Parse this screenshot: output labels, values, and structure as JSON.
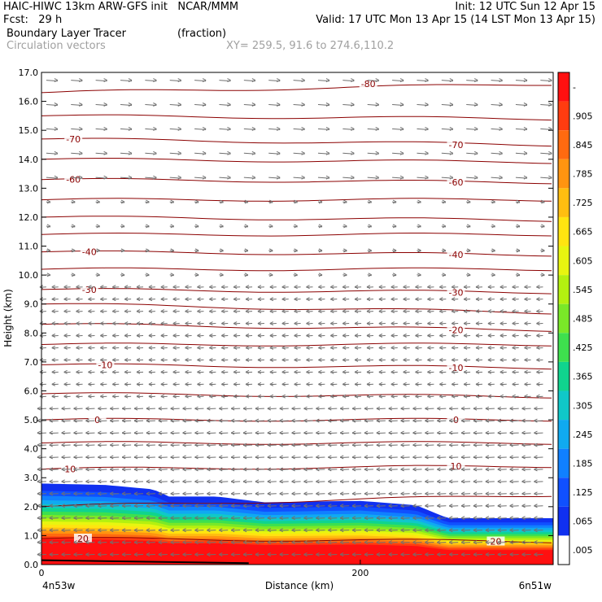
{
  "header": {
    "line1_left": "HAIC-HIWC 13km ARW-GFS init   NCAR/MMM",
    "line1_right": "Init: 12 UTC Sun 12 Apr 15",
    "line2_left": "Fcst:   29 h",
    "line2_right": "Valid: 17 UTC Mon 13 Apr 15 (14 LST Mon 13 Apr 15)",
    "line3_left": "Boundary Layer Tracer",
    "line3_mid": "(fraction)",
    "line4_left": "Circulation vectors",
    "line4_mid": "XY= 259.5, 91.6 to 274.6,110.2"
  },
  "chart_data": {
    "type": "heatmap",
    "ylabel": "Height (km)",
    "xlabel": "Distance (km)",
    "x_left_label": "4n53w",
    "x_right_label": "6n51w",
    "x_ticks": [
      {
        "value": 0,
        "label": "0"
      },
      {
        "value": 200,
        "label": "200"
      }
    ],
    "xlim": [
      0,
      321
    ],
    "ylim": [
      0,
      17
    ],
    "y_ticks": [
      "0.0",
      "1.0",
      "2.0",
      "3.0",
      "4.0",
      "5.0",
      "6.0",
      "7.0",
      "8.0",
      "9.0",
      "10.0",
      "11.0",
      "12.0",
      "13.0",
      "14.0",
      "15.0",
      "16.0",
      "17.0"
    ],
    "colorbar": {
      "labels": [
        "-",
        ".905",
        ".845",
        ".785",
        ".725",
        ".665",
        ".605",
        ".545",
        ".485",
        ".425",
        ".365",
        ".305",
        ".245",
        ".185",
        ".125",
        ".065",
        ".005"
      ],
      "colors": [
        "#ff1010",
        "#ff3c10",
        "#ff6a10",
        "#ff9410",
        "#ffbe10",
        "#ffe410",
        "#e8f510",
        "#b4f010",
        "#7ae828",
        "#3ee04e",
        "#10d48e",
        "#10c8c8",
        "#10aaf0",
        "#1080ff",
        "#1050ff",
        "#1030f0",
        "#ffffff"
      ]
    },
    "tracer_top_km": [
      {
        "x": 0,
        "y": 2.8
      },
      {
        "x": 40,
        "y": 2.75
      },
      {
        "x": 70,
        "y": 2.6
      },
      {
        "x": 80,
        "y": 2.35
      },
      {
        "x": 110,
        "y": 2.35
      },
      {
        "x": 140,
        "y": 2.15
      },
      {
        "x": 200,
        "y": 2.2
      },
      {
        "x": 235,
        "y": 2.05
      },
      {
        "x": 255,
        "y": 1.6
      },
      {
        "x": 321,
        "y": 1.6
      }
    ],
    "temperature_contours": [
      {
        "label": "-80",
        "y_left": 16.3,
        "y_right": 16.6
      },
      {
        "label": "",
        "y_left": 15.5,
        "y_right": 15.4
      },
      {
        "label": "-70",
        "y_left": 14.7,
        "y_right": 14.5
      },
      {
        "label": "",
        "y_left": 14.0,
        "y_right": 13.9
      },
      {
        "label": "-60",
        "y_left": 13.3,
        "y_right": 13.2
      },
      {
        "label": "",
        "y_left": 12.6,
        "y_right": 12.6
      },
      {
        "label": "",
        "y_left": 12.0,
        "y_right": 11.9
      },
      {
        "label": "",
        "y_left": 11.4,
        "y_right": 11.4
      },
      {
        "label": "-40",
        "y_left": 10.8,
        "y_right": 10.7
      },
      {
        "label": "",
        "y_left": 10.2,
        "y_right": 10.2
      },
      {
        "label": "-30",
        "y_left": 9.5,
        "y_right": 9.4
      },
      {
        "label": "",
        "y_left": 9.0,
        "y_right": 8.7
      },
      {
        "label": "-20",
        "y_left": 8.3,
        "y_right": 8.1
      },
      {
        "label": "",
        "y_left": 7.6,
        "y_right": 7.6
      },
      {
        "label": "-10",
        "y_left": 6.9,
        "y_right": 6.8
      },
      {
        "label": "",
        "y_left": 5.9,
        "y_right": 5.8
      },
      {
        "label": "0",
        "y_left": 5.0,
        "y_right": 5.0
      },
      {
        "label": "",
        "y_left": 4.2,
        "y_right": 4.2
      },
      {
        "label": "10",
        "y_left": 3.3,
        "y_right": 3.4
      },
      {
        "label": "",
        "y_left": 2.0,
        "y_right": 2.4
      },
      {
        "label": "20",
        "y_left": 0.9,
        "y_right": 0.8
      }
    ],
    "contour_labels": [
      {
        "text": "-80",
        "x": 205,
        "y": 16.6
      },
      {
        "text": "-70",
        "x": 20,
        "y": 14.7
      },
      {
        "text": "-70",
        "x": 260,
        "y": 14.5
      },
      {
        "text": "-60",
        "x": 20,
        "y": 13.3
      },
      {
        "text": "-60",
        "x": 260,
        "y": 13.2
      },
      {
        "text": "-40",
        "x": 30,
        "y": 10.8
      },
      {
        "text": "-40",
        "x": 260,
        "y": 10.7
      },
      {
        "text": "-30",
        "x": 30,
        "y": 9.5
      },
      {
        "text": "-30",
        "x": 260,
        "y": 9.4
      },
      {
        "text": "-20",
        "x": 260,
        "y": 8.1
      },
      {
        "text": "-10",
        "x": 40,
        "y": 6.9
      },
      {
        "text": "-10",
        "x": 260,
        "y": 6.8
      },
      {
        "text": "0",
        "x": 35,
        "y": 5.0
      },
      {
        "text": "0",
        "x": 260,
        "y": 5.0
      },
      {
        "text": "10",
        "x": 18,
        "y": 3.3
      },
      {
        "text": "10",
        "x": 260,
        "y": 3.4
      },
      {
        "text": "20",
        "x": 26,
        "y": 0.9
      },
      {
        "text": "20",
        "x": 285,
        "y": 0.8
      }
    ]
  }
}
